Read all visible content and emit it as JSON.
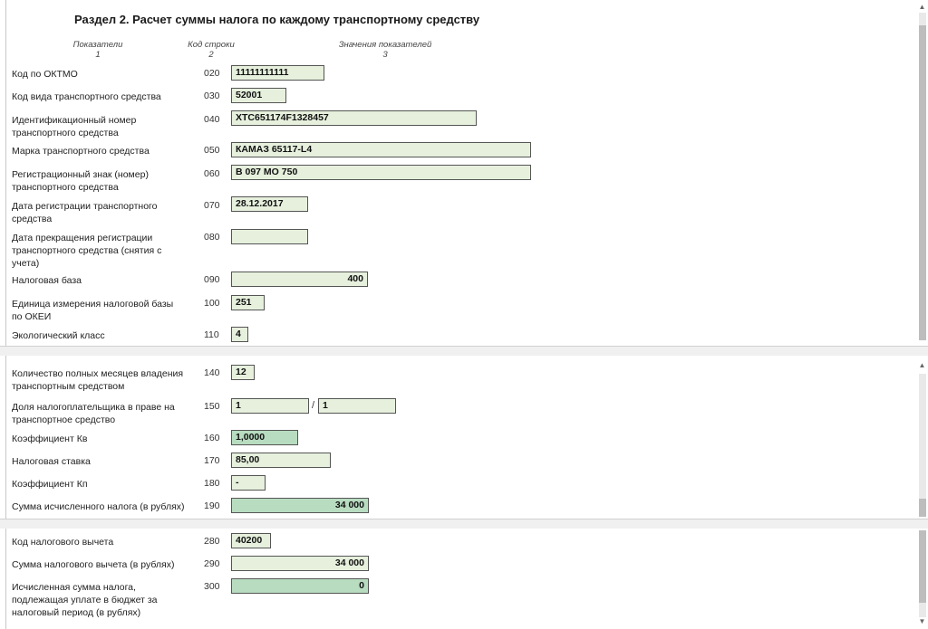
{
  "section_title": "Раздел 2. Расчет суммы налога по каждому транспортному средству",
  "headers": {
    "col1": "Показатели",
    "col1_num": "1",
    "col2": "Код строки",
    "col2_num": "2",
    "col3": "Значения показателей",
    "col3_num": "3"
  },
  "rows": [
    {
      "label": "Код по ОКТМО",
      "code": "020",
      "value": "11111111111"
    },
    {
      "label": "Код вида транспортного средства",
      "code": "030",
      "value": "52001"
    },
    {
      "label": "Идентификационный номер транспортного средства",
      "code": "040",
      "value": "XTC651174F1328457"
    },
    {
      "label": "Марка транспортного средства",
      "code": "050",
      "value": "КАМАЗ 65117-L4"
    },
    {
      "label": "Регистрационный знак (номер) транспортного средства",
      "code": "060",
      "value": "В 097 МО 750"
    },
    {
      "label": "Дата регистрации транспортного средства",
      "code": "070",
      "value": "28.12.2017"
    },
    {
      "label": "Дата прекращения регистрации транспортного средства (снятия с учета)",
      "code": "080",
      "value": ""
    },
    {
      "label": "Налоговая база",
      "code": "090",
      "value": "400"
    },
    {
      "label": "Единица измерения налоговой базы по ОКЕИ",
      "code": "100",
      "value": "251"
    },
    {
      "label": "Экологический класс",
      "code": "110",
      "value": "4"
    }
  ],
  "rows2": [
    {
      "label": "Количество полных месяцев владения транспортным средством",
      "code": "140",
      "value": "12"
    },
    {
      "label": "Доля налогоплательщика в праве на транспортное средство",
      "code": "150",
      "value": "1",
      "value2": "1",
      "separator": "/"
    },
    {
      "label": "Коэффициент Кв",
      "code": "160",
      "value": "1,0000"
    },
    {
      "label": "Налоговая ставка",
      "code": "170",
      "value": "85,00"
    },
    {
      "label": "Коэффициент Кп",
      "code": "180",
      "value": "-"
    },
    {
      "label": "Сумма исчисленного налога (в рублях)",
      "code": "190",
      "value": "34 000"
    }
  ],
  "rows3": [
    {
      "label": "Код налогового вычета",
      "code": "280",
      "value": "40200"
    },
    {
      "label": "Сумма налогового вычета (в рублях)",
      "code": "290",
      "value": "34 000"
    },
    {
      "label": "Исчисленная сумма налога, подлежащая уплате в бюджет за налоговый период (в рублях)",
      "code": "300",
      "value": "0"
    }
  ],
  "colors": {
    "field_bg": "#e6f0dd",
    "field_calc_bg": "#b8dcc0"
  }
}
